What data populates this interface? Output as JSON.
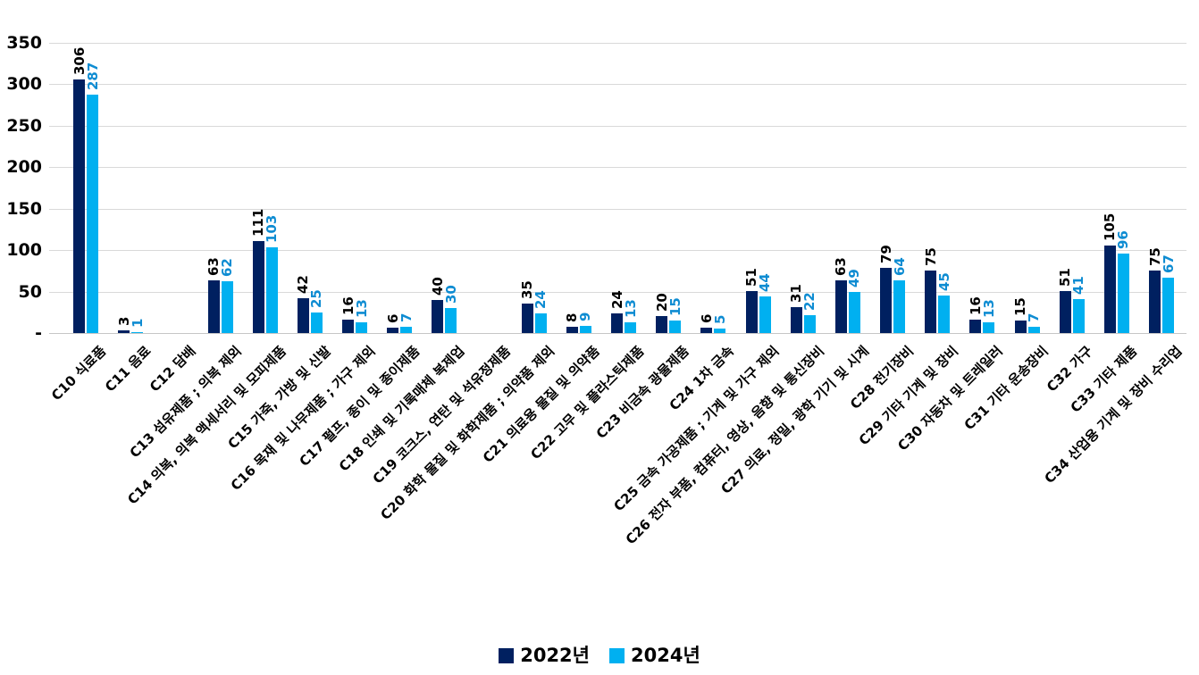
{
  "chart_data": {
    "type": "bar",
    "title": "",
    "xlabel": "",
    "ylabel": "",
    "ylim": [
      0,
      350
    ],
    "ytick_interval": 50,
    "ytick_labels": [
      "-",
      "50",
      "100",
      "150",
      "200",
      "250",
      "300",
      "350"
    ],
    "grid": true,
    "legend_position": "bottom",
    "data_label_rotation": "vertical",
    "category_label_rotation": 45,
    "categories": [
      "C10 식료품",
      "C11 음료",
      "C12 담배",
      "C13 섬유제품 ; 의복 제외",
      "C14 의복, 의복 액세서리 및 모피제품",
      "C15 가죽, 가방 및 신발",
      "C16 목재 및 나무제품 ; 가구 제외",
      "C17 펄프, 종이 및 종이제품",
      "C18 인쇄 및 기록매체 복제업",
      "C19 코크스, 연탄 및 석유정제품",
      "C20 화학 물질 및 화학제품 ; 의약품 제외",
      "C21 의료용 물질 및 의약품",
      "C22 고무 및 플라스틱제품",
      "C23 비금속 광물제품",
      "C24 1차 금속",
      "C25 금속 가공제품 ; 기계 및 가구 제외",
      "C26 전자 부품, 컴퓨터, 영상, 음향 및 통신장비",
      "C27 의료, 정밀, 광학 기기 및 시계",
      "C28 전기장비",
      "C29 기타 기계 및 장비",
      "C30 자동차 및 트레일러",
      "C31 기타 운송장비",
      "C32 가구",
      "C33 기타 제품",
      "C34 산업용 기계 및 장비 수리업"
    ],
    "series": [
      {
        "name": "2022년",
        "color": "#002060",
        "label_color": "#000000",
        "values": [
          306,
          3,
          null,
          63,
          111,
          42,
          16,
          6,
          40,
          null,
          35,
          8,
          24,
          20,
          6,
          51,
          31,
          63,
          79,
          75,
          16,
          15,
          51,
          105,
          75
        ]
      },
      {
        "name": "2024년",
        "color": "#00B0F0",
        "label_color": "#0E8CD2",
        "values": [
          287,
          1,
          null,
          62,
          103,
          25,
          13,
          7,
          30,
          null,
          24,
          9,
          13,
          15,
          5,
          44,
          22,
          49,
          64,
          45,
          13,
          7,
          41,
          96,
          67
        ]
      }
    ],
    "colors": {
      "gridline": "#D9D9D9",
      "axis_line": "#C6C6C6",
      "axis_text": "#000000"
    }
  }
}
